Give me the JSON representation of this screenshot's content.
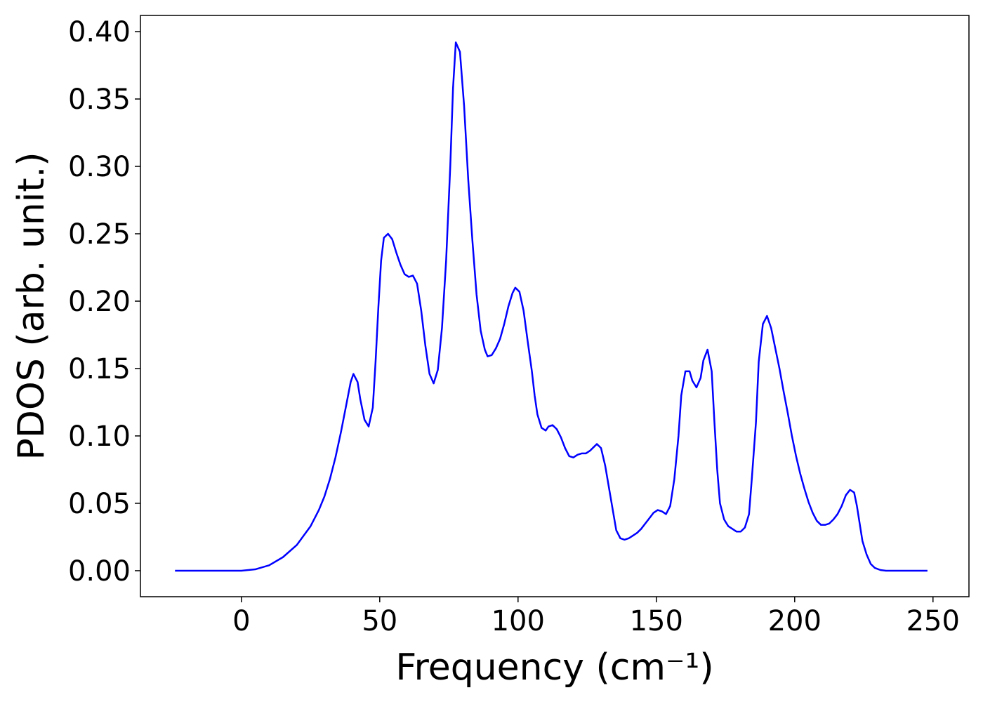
{
  "chart_data": {
    "type": "line",
    "xlabel": "Frequency (cm⁻¹)",
    "ylabel": "PDOS (arb. unit.)",
    "xlim": [
      -36.5,
      263
    ],
    "ylim": [
      -0.0193,
      0.412
    ],
    "xticks": [
      0,
      50,
      100,
      150,
      200,
      250
    ],
    "yticks": [
      {
        "value": 0,
        "label": "0.00"
      },
      {
        "value": 0.05,
        "label": "0.05"
      },
      {
        "value": 0.1,
        "label": "0.10"
      },
      {
        "value": 0.15,
        "label": "0.15"
      },
      {
        "value": 0.2,
        "label": "0.20"
      },
      {
        "value": 0.25,
        "label": "0.25"
      },
      {
        "value": 0.3,
        "label": "0.30"
      },
      {
        "value": 0.35,
        "label": "0.35"
      },
      {
        "value": 0.4,
        "label": "0.40"
      }
    ],
    "grid": false,
    "series": [
      {
        "color": "#0000ff",
        "x": [
          -24,
          -10,
          0,
          5,
          10,
          15,
          20,
          25,
          28,
          30,
          32,
          34,
          36,
          38,
          39.5,
          40.5,
          42,
          43,
          44.5,
          46,
          47.5,
          48.5,
          49.5,
          50.5,
          51.5,
          53,
          54.5,
          56,
          57.5,
          59,
          60.5,
          62,
          63.5,
          65,
          66.5,
          68,
          69.5,
          71,
          72.5,
          74,
          75.5,
          76.5,
          77.5,
          79,
          80.5,
          82,
          83.5,
          85,
          86.5,
          88,
          89,
          90.5,
          92,
          93.5,
          95,
          96.5,
          98,
          99,
          100.5,
          102,
          103.5,
          105,
          106,
          107,
          108.5,
          110,
          111,
          112.5,
          114,
          115.5,
          117,
          118.5,
          120,
          121.5,
          123,
          124.5,
          126,
          127.5,
          128.5,
          130,
          131.5,
          133,
          134.5,
          135.5,
          137,
          138.5,
          140,
          141.5,
          143,
          144.5,
          146,
          147.5,
          149,
          150.5,
          152,
          153.5,
          155,
          156.5,
          158,
          159,
          160.5,
          162,
          163,
          164.5,
          166,
          167,
          168.5,
          170,
          171,
          172,
          173,
          174.5,
          176,
          177.5,
          179,
          180.5,
          182,
          183.5,
          184.5,
          186,
          187,
          188.5,
          190,
          191.5,
          193,
          194.5,
          196,
          197.5,
          199,
          200.5,
          202,
          203.5,
          205,
          206.5,
          208,
          209.5,
          211,
          212.5,
          214,
          215.5,
          217,
          218.5,
          220,
          221.5,
          222.5,
          223.5,
          224.5,
          226,
          227.5,
          229,
          231,
          233,
          240,
          248
        ],
        "values": [
          0,
          0,
          0,
          0.001,
          0.004,
          0.01,
          0.019,
          0.033,
          0.045,
          0.055,
          0.068,
          0.084,
          0.103,
          0.124,
          0.14,
          0.146,
          0.14,
          0.127,
          0.112,
          0.107,
          0.121,
          0.155,
          0.195,
          0.23,
          0.247,
          0.25,
          0.246,
          0.236,
          0.227,
          0.22,
          0.218,
          0.219,
          0.213,
          0.193,
          0.167,
          0.146,
          0.139,
          0.149,
          0.18,
          0.23,
          0.3,
          0.358,
          0.392,
          0.385,
          0.345,
          0.29,
          0.245,
          0.205,
          0.178,
          0.164,
          0.159,
          0.16,
          0.165,
          0.172,
          0.183,
          0.196,
          0.206,
          0.21,
          0.207,
          0.193,
          0.17,
          0.148,
          0.13,
          0.116,
          0.106,
          0.104,
          0.107,
          0.108,
          0.105,
          0.099,
          0.091,
          0.085,
          0.084,
          0.086,
          0.087,
          0.087,
          0.089,
          0.092,
          0.094,
          0.091,
          0.078,
          0.06,
          0.042,
          0.03,
          0.024,
          0.023,
          0.024,
          0.026,
          0.028,
          0.031,
          0.035,
          0.039,
          0.043,
          0.045,
          0.044,
          0.042,
          0.048,
          0.068,
          0.1,
          0.13,
          0.148,
          0.148,
          0.141,
          0.136,
          0.143,
          0.156,
          0.164,
          0.148,
          0.11,
          0.075,
          0.05,
          0.038,
          0.033,
          0.031,
          0.029,
          0.029,
          0.032,
          0.042,
          0.068,
          0.11,
          0.155,
          0.183,
          0.189,
          0.18,
          0.165,
          0.15,
          0.133,
          0.117,
          0.1,
          0.085,
          0.072,
          0.061,
          0.051,
          0.043,
          0.037,
          0.034,
          0.034,
          0.035,
          0.038,
          0.042,
          0.048,
          0.056,
          0.06,
          0.058,
          0.048,
          0.035,
          0.022,
          0.012,
          0.005,
          0.002,
          0.0005,
          0,
          0,
          0
        ]
      }
    ]
  }
}
